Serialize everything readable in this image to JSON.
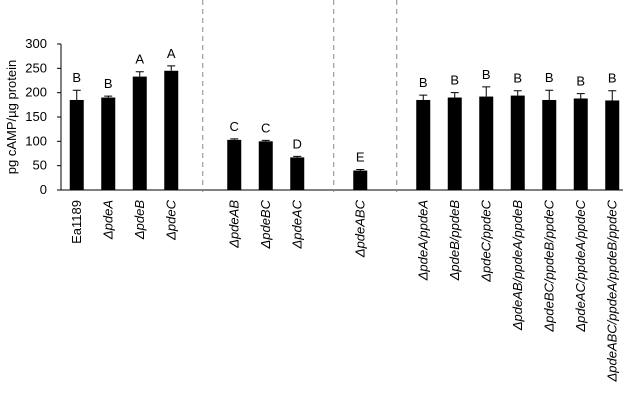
{
  "chart_data": {
    "type": "bar",
    "y_label": "pg cAMP/µg protein",
    "categories": [
      "Ea1189",
      "ΔpdeA",
      "ΔpdeB",
      "ΔpdeC",
      null,
      "ΔpdeAB",
      "ΔpdeBC",
      "ΔpdeAC",
      null,
      "ΔpdeABC",
      null,
      "ΔpdeA/ppdeA",
      "ΔpdeB/ppdeB",
      "ΔpdeC/ppdeC",
      "ΔpdeAB/ppdeA/ppdeB",
      "ΔpdeBC/ppdeB/ppdeC",
      "ΔpdeAC/ppdeA/ppdeC",
      "ΔpdeABC/ppdeA/ppdeB/ppdeC"
    ],
    "values": [
      185,
      190,
      233,
      245,
      null,
      103,
      100,
      67,
      null,
      40,
      null,
      185,
      190,
      192,
      194,
      185,
      188,
      184
    ],
    "errors": [
      20,
      3,
      10,
      10,
      null,
      2,
      2,
      2,
      null,
      2,
      null,
      10,
      10,
      20,
      10,
      20,
      10,
      20
    ],
    "annotations": [
      "B",
      "B",
      "A",
      "A",
      null,
      "C",
      "C",
      "D",
      null,
      "E",
      null,
      "B",
      "B",
      "B",
      "B",
      "B",
      "B",
      "B"
    ],
    "color": "#000000",
    "ylim": [
      0,
      300
    ],
    "yticks": [
      0,
      50,
      100,
      150,
      200,
      250,
      300
    ],
    "grid": false
  }
}
